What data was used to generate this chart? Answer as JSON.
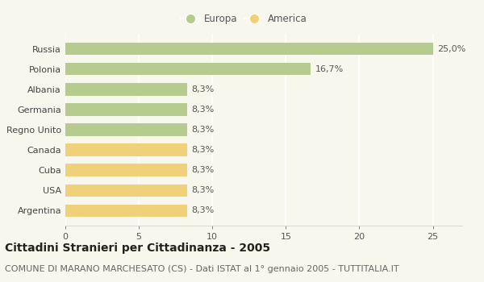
{
  "categories": [
    "Argentina",
    "USA",
    "Cuba",
    "Canada",
    "Regno Unito",
    "Germania",
    "Albania",
    "Polonia",
    "Russia"
  ],
  "values": [
    8.3,
    8.3,
    8.3,
    8.3,
    8.3,
    8.3,
    8.3,
    16.7,
    25.0
  ],
  "bar_colors": [
    "#f0d078",
    "#f0d078",
    "#f0d078",
    "#f0d078",
    "#b5cc8e",
    "#b5cc8e",
    "#b5cc8e",
    "#b5cc8e",
    "#b5cc8e"
  ],
  "label_texts": [
    "8,3%",
    "8,3%",
    "8,3%",
    "8,3%",
    "8,3%",
    "8,3%",
    "8,3%",
    "16,7%",
    "25,0%"
  ],
  "europa_color": "#b5cc8e",
  "america_color": "#f0d078",
  "background_color": "#f7f7ee",
  "title": "Cittadini Stranieri per Cittadinanza - 2005",
  "subtitle": "COMUNE DI MARANO MARCHESATO (CS) - Dati ISTAT al 1° gennaio 2005 - TUTTITALIA.IT",
  "xlim": [
    0,
    27
  ],
  "xticks": [
    0,
    5,
    10,
    15,
    20,
    25
  ],
  "legend_europa": "Europa",
  "legend_america": "America",
  "bar_height": 0.62,
  "title_fontsize": 10,
  "subtitle_fontsize": 8,
  "label_fontsize": 8,
  "tick_fontsize": 8,
  "ytick_fontsize": 8
}
